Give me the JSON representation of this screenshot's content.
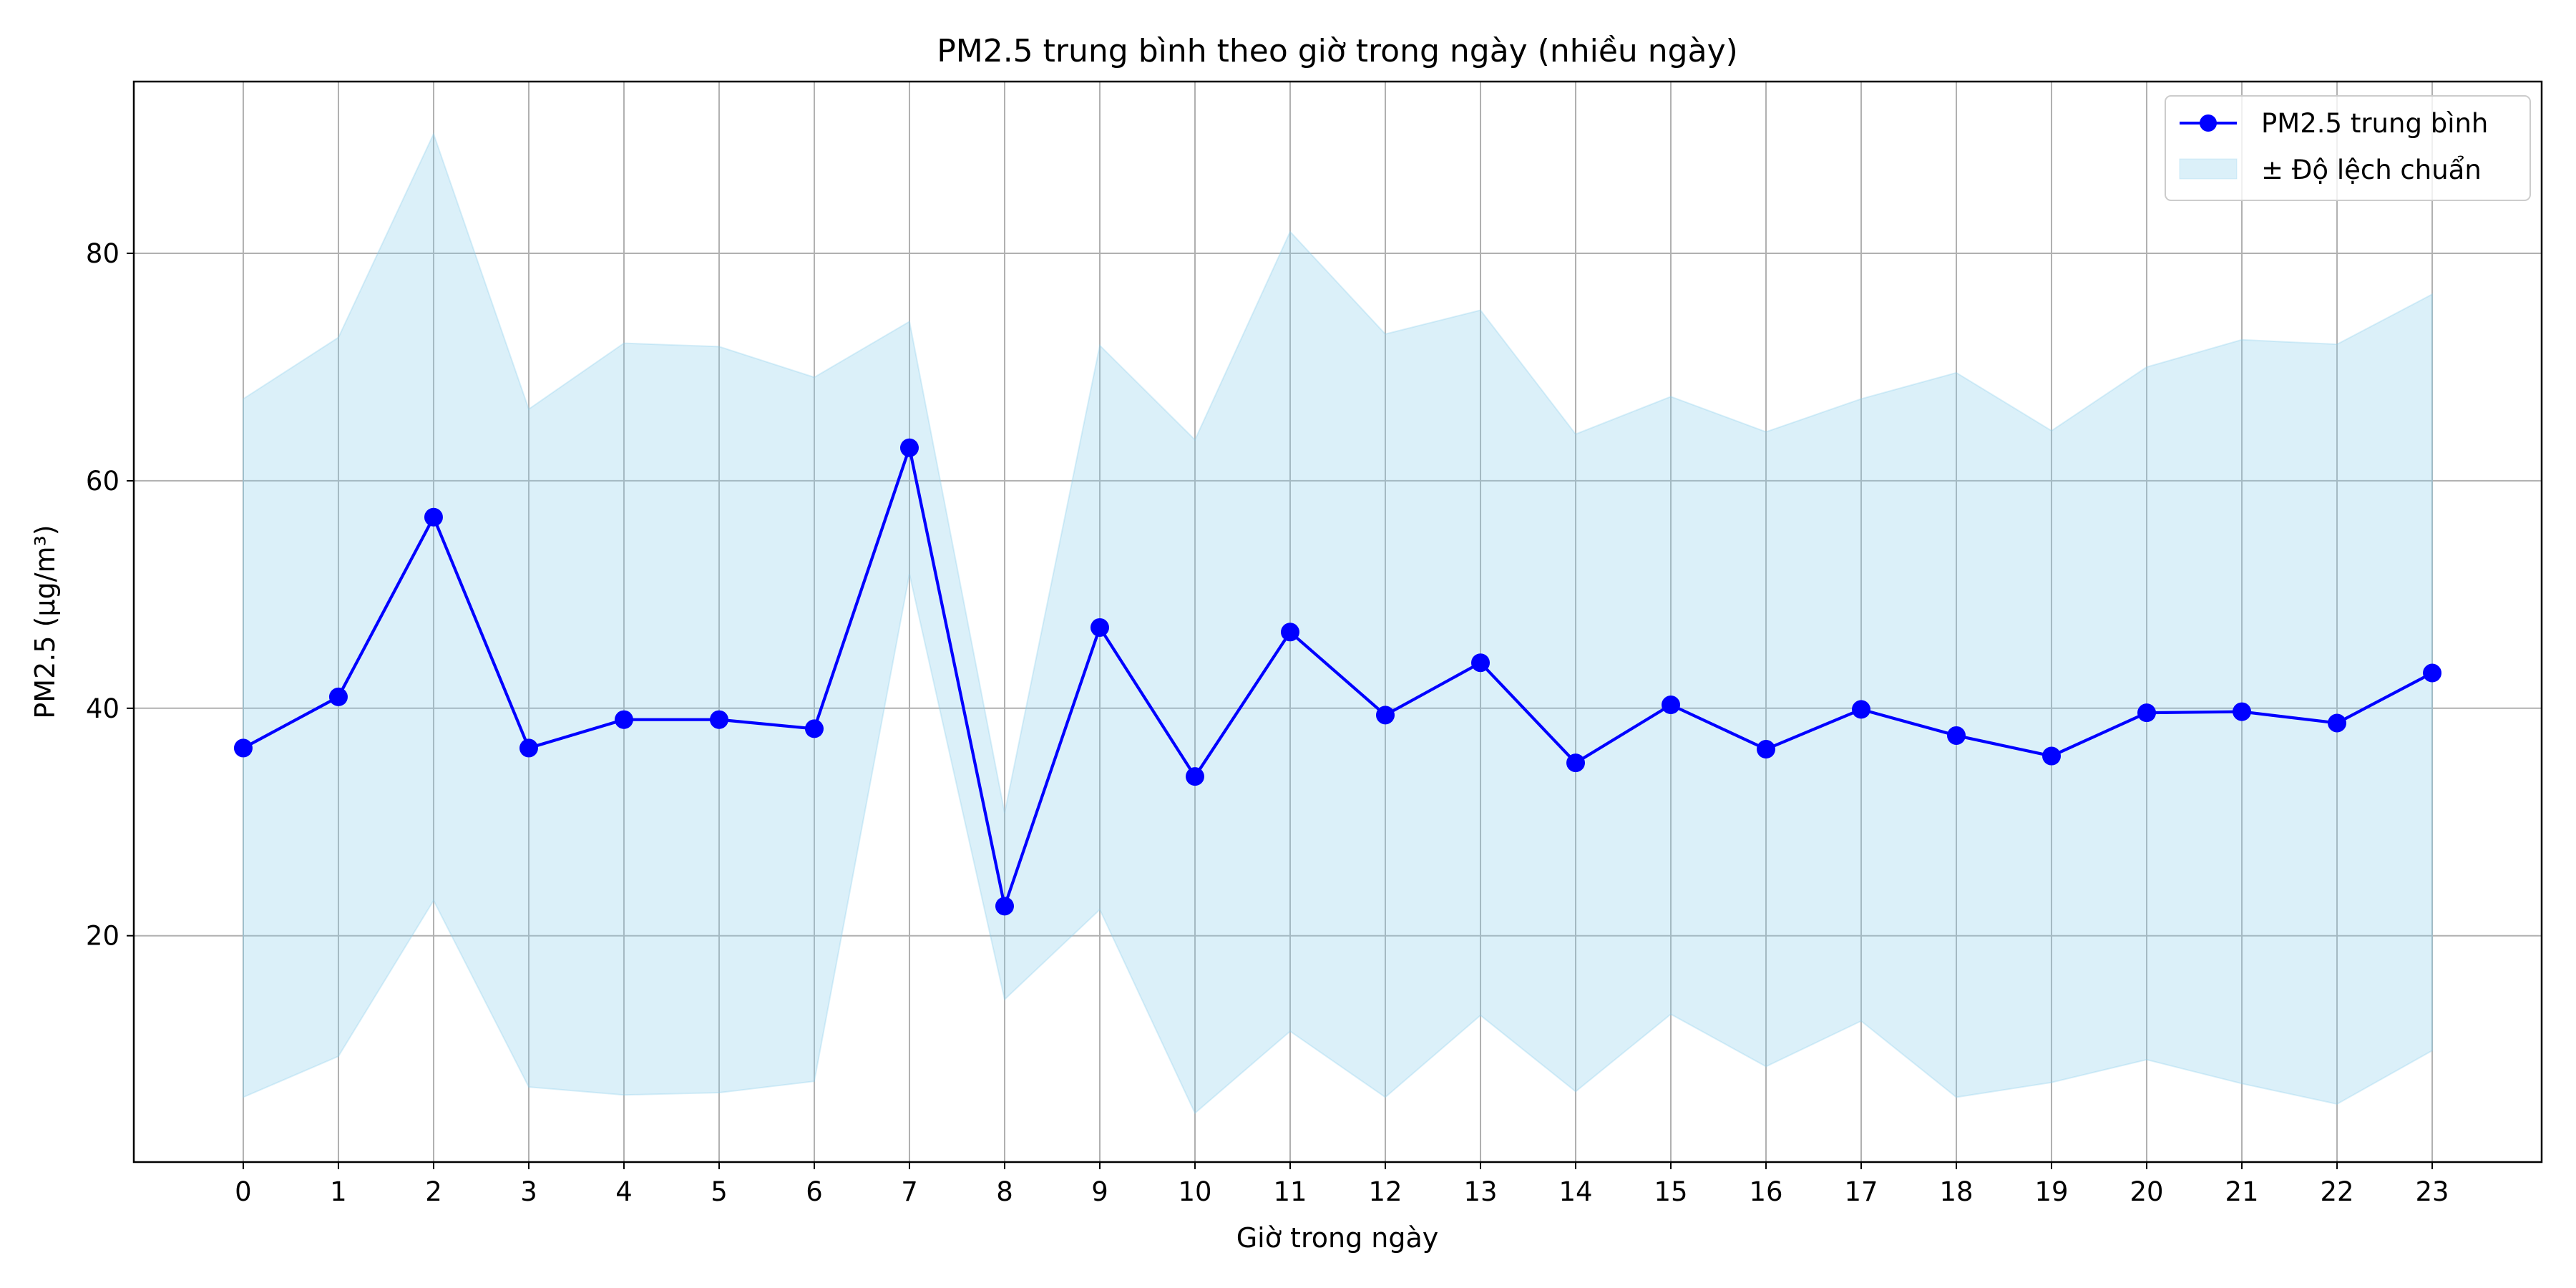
{
  "chart_data": {
    "type": "line",
    "title": "PM2.5 trung bình theo giờ trong ngày (nhiều ngày)",
    "xlabel": "Giờ trong ngày",
    "ylabel": "PM2.5 (μg/m³)",
    "xlim": [
      -1.15,
      24.15
    ],
    "ylim": [
      0.1,
      95.1
    ],
    "x_ticks": [
      0,
      1,
      2,
      3,
      4,
      5,
      6,
      7,
      8,
      9,
      10,
      11,
      12,
      13,
      14,
      15,
      16,
      17,
      18,
      19,
      20,
      21,
      22,
      23
    ],
    "y_ticks": [
      20,
      40,
      60,
      80
    ],
    "grid": true,
    "legend_position": "top-right",
    "x": [
      0,
      1,
      2,
      3,
      4,
      5,
      6,
      7,
      8,
      9,
      10,
      11,
      12,
      13,
      14,
      15,
      16,
      17,
      18,
      19,
      20,
      21,
      22,
      23
    ],
    "series": [
      {
        "name": "PM2.5 trung bình",
        "color": "#0000ff",
        "marker": "circle",
        "values": [
          36.5,
          41.0,
          56.8,
          36.5,
          39.0,
          39.0,
          38.2,
          62.9,
          22.6,
          47.1,
          34.0,
          46.7,
          39.4,
          44.0,
          35.2,
          40.3,
          36.4,
          39.9,
          37.6,
          35.8,
          39.6,
          39.7,
          38.7,
          43.1
        ]
      }
    ],
    "band": {
      "name": "± Độ lệch chuẩn",
      "color": "#87ceeb",
      "opacity": 0.3,
      "upper": [
        67.2,
        72.6,
        90.5,
        66.3,
        72.1,
        71.8,
        69.1,
        74.0,
        30.8,
        71.9,
        63.6,
        81.9,
        72.9,
        75.0,
        64.1,
        67.4,
        64.3,
        67.2,
        69.5,
        64.4,
        70.0,
        72.4,
        72.0,
        76.4
      ],
      "lower": [
        5.8,
        9.4,
        23.1,
        6.7,
        6.0,
        6.2,
        7.2,
        51.8,
        14.4,
        22.3,
        4.4,
        11.6,
        5.8,
        13.0,
        6.3,
        13.1,
        8.5,
        12.5,
        5.8,
        7.1,
        9.1,
        7.0,
        5.2,
        9.9
      ]
    }
  }
}
